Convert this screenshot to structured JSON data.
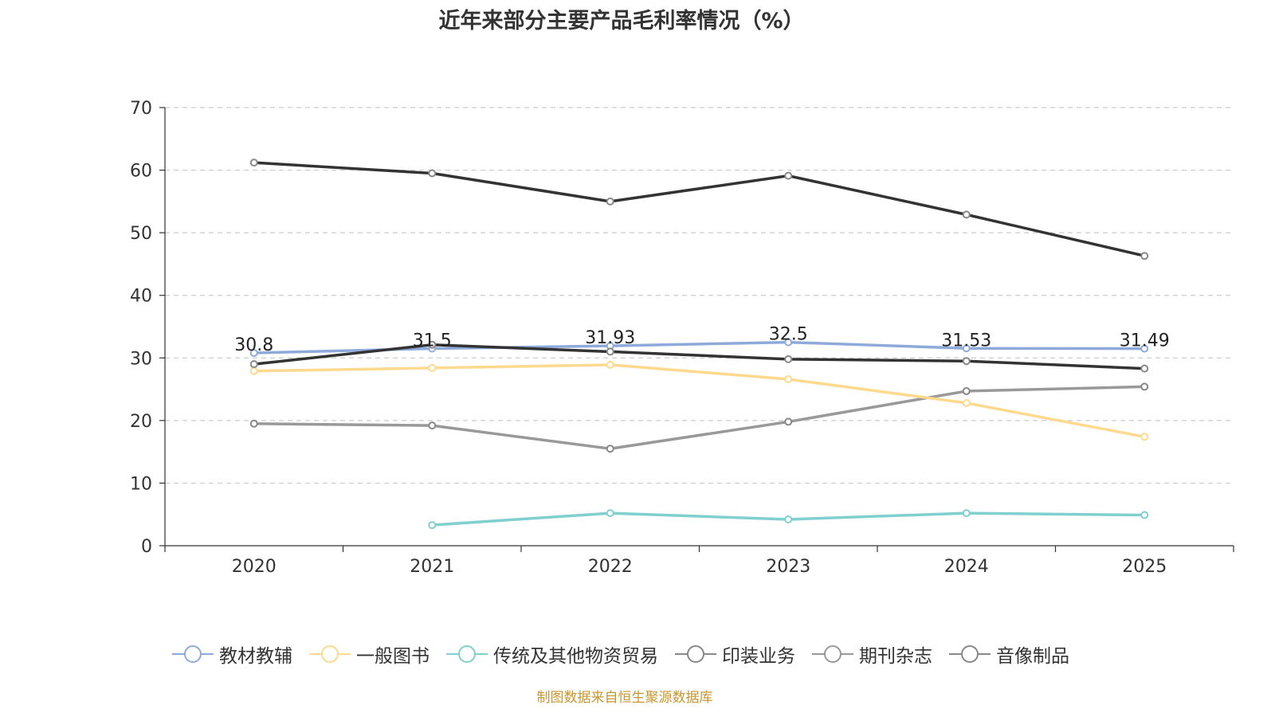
{
  "chart_data": {
    "type": "line",
    "title": "近年来部分主要产品毛利率情况（%）",
    "xlabel": "",
    "ylabel": "",
    "categories": [
      "2020",
      "2021",
      "2022",
      "2023",
      "2024",
      "2025"
    ],
    "ylim": [
      0,
      70
    ],
    "yticks": [
      0,
      10,
      20,
      30,
      40,
      50,
      60,
      70
    ],
    "grid": true,
    "legend_position": "bottom",
    "series": [
      {
        "name": "教材教辅",
        "color": "#8eaadb",
        "values": [
          30.8,
          31.5,
          31.93,
          32.5,
          31.53,
          31.49
        ],
        "labels": [
          "30.8",
          "31.5",
          "31.93",
          "32.5",
          "31.53",
          "31.49"
        ]
      },
      {
        "name": "一般图书",
        "color": "#ffd98e",
        "values": [
          27.9,
          28.4,
          28.9,
          26.6,
          22.8,
          17.4
        ]
      },
      {
        "name": "传统及其他物资贸易",
        "color": "#7fd0cf",
        "values": [
          null,
          3.3,
          5.2,
          4.2,
          5.2,
          4.9
        ]
      },
      {
        "name": "印装业务",
        "color": "#333333",
        "values": [
          61.2,
          59.5,
          55.0,
          59.1,
          52.9,
          46.3
        ]
      },
      {
        "name": "期刊杂志",
        "color": "#999999",
        "values": [
          19.5,
          19.2,
          15.5,
          19.8,
          24.7,
          25.4
        ]
      },
      {
        "name": "音像制品",
        "color": "#333333",
        "values": [
          29.0,
          32.1,
          31.0,
          29.8,
          29.5,
          28.3
        ]
      }
    ]
  },
  "source_text": "制图数据来自恒生聚源数据库",
  "source_color": "#c8962e"
}
